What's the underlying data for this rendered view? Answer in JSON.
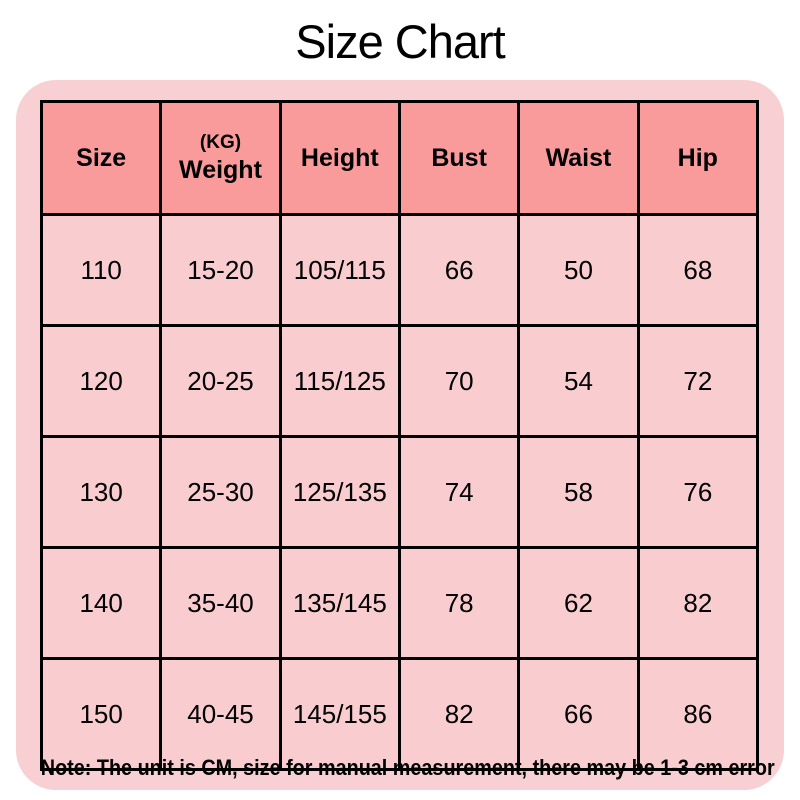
{
  "title": "Size Chart",
  "chart_data": {
    "type": "table",
    "title": "Size Chart",
    "columns": [
      "Size",
      "(KG) Weight",
      "Height",
      "Bust",
      "Waist",
      "Hip"
    ],
    "rows": [
      [
        "110",
        "15-20",
        "105/115",
        "66",
        "50",
        "68"
      ],
      [
        "120",
        "20-25",
        "115/125",
        "70",
        "54",
        "72"
      ],
      [
        "130",
        "25-30",
        "125/135",
        "74",
        "58",
        "76"
      ],
      [
        "140",
        "35-40",
        "135/145",
        "78",
        "62",
        "82"
      ],
      [
        "150",
        "40-45",
        "145/155",
        "82",
        "66",
        "86"
      ]
    ],
    "note": "Note: The unit is CM, size for manual measurement, there may be 1-3 cm error",
    "unit": "CM"
  },
  "table": {
    "headers": {
      "size": "Size",
      "weight_top": "(KG)",
      "weight": "Weight",
      "height": "Height",
      "bust": "Bust",
      "waist": "Waist",
      "hip": "Hip"
    }
  },
  "note": "Note: The unit is CM, size for manual measurement, there may be 1-3 cm error",
  "colors": {
    "page_bg": "#FFFFFF",
    "panel_bg": "#F8CFD2",
    "header_bg": "#F99A9B",
    "cell_bg": "#F9CDD0",
    "border": "#000000",
    "text": "#000000"
  }
}
